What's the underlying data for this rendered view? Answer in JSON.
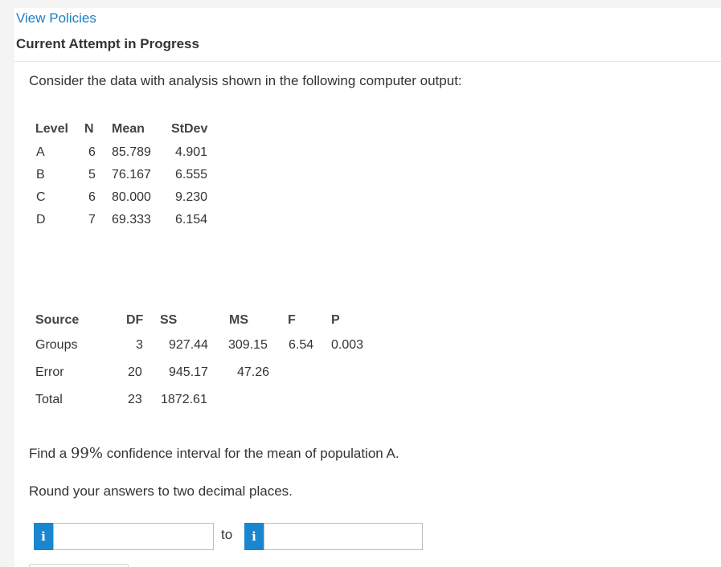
{
  "header": {
    "view_policies": "View Policies",
    "attempt_status": "Current Attempt in Progress"
  },
  "question": {
    "intro": "Consider the data with analysis shown in the following computer output:",
    "levels_table": {
      "headers": [
        "Level",
        "N",
        "Mean",
        "StDev"
      ],
      "rows": [
        [
          "A",
          "6",
          "85.789",
          "4.901"
        ],
        [
          "B",
          "5",
          "76.167",
          "6.555"
        ],
        [
          "C",
          "6",
          "80.000",
          "9.230"
        ],
        [
          "D",
          "7",
          "69.333",
          "6.154"
        ]
      ]
    },
    "anova_table": {
      "headers": [
        "Source",
        "DF",
        "SS",
        "MS",
        "F",
        "P"
      ],
      "rows": [
        [
          "Groups",
          "3",
          "927.44",
          "309.15",
          "6.54",
          "0.003"
        ],
        [
          "Error",
          "20",
          "945.17",
          "47.26",
          "",
          ""
        ],
        [
          "Total",
          "23",
          "1872.61",
          "",
          "",
          ""
        ]
      ]
    },
    "task_prefix": "Find a ",
    "task_math": "99%",
    "task_suffix": " confidence interval for the mean of population A.",
    "rounding": "Round your answers to two decimal places.",
    "interval": {
      "lower_value": "",
      "to_label": "to",
      "upper_value": "",
      "info_glyph": "i"
    }
  },
  "icons": {
    "info": "info-icon"
  },
  "colors": {
    "link": "#1a7fc1",
    "info_button": "#1a86d0"
  }
}
